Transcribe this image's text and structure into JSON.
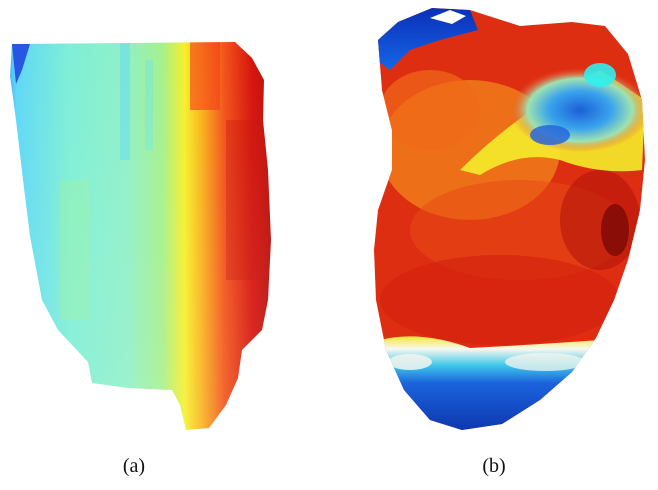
{
  "panels": [
    {
      "caption": "(a)",
      "description_icon": "flattened-surface-colormap"
    },
    {
      "caption": "(b)",
      "description_icon": "heart-surface-colormap"
    }
  ],
  "colors": {
    "blue": "#0a3fc8",
    "cyan": "#22d8f0",
    "yellow": "#f0ec2a",
    "orange": "#f07a12",
    "red": "#e3270e",
    "dark_red": "#8e0a06"
  }
}
